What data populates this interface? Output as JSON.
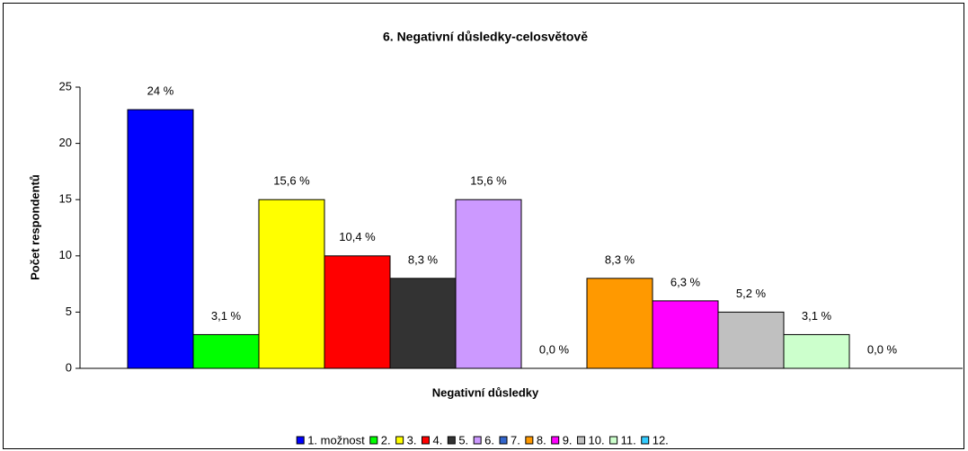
{
  "chart_data": {
    "type": "bar",
    "title": "6. Negativní důsledky-celosvětově",
    "x_label": "Negativní důsledky",
    "y_label": "Počet respondentů",
    "ylim": [
      0,
      25
    ],
    "yticks": [
      0,
      5,
      10,
      15,
      20,
      25
    ],
    "legend": "bottom",
    "series": [
      {
        "name": "1. možnost",
        "color": "#0000ff",
        "values": [
          23
        ],
        "value_labels": [
          "24 %"
        ]
      },
      {
        "name": "2.",
        "color": "#00ff00",
        "values": [
          3
        ],
        "value_labels": [
          "3,1 %"
        ]
      },
      {
        "name": "3.",
        "color": "#ffff00",
        "values": [
          15
        ],
        "value_labels": [
          "15,6 %"
        ]
      },
      {
        "name": "4.",
        "color": "#ff0000",
        "values": [
          10
        ],
        "value_labels": [
          "10,4 %"
        ]
      },
      {
        "name": "5.",
        "color": "#333333",
        "values": [
          8
        ],
        "value_labels": [
          "8,3 %"
        ]
      },
      {
        "name": "6.",
        "color": "#cc99ff",
        "values": [
          15
        ],
        "value_labels": [
          "15,6 %"
        ]
      },
      {
        "name": "7.",
        "color": "#3366cc",
        "values": [
          0
        ],
        "value_labels": [
          "0,0 %"
        ]
      },
      {
        "name": "8.",
        "color": "#ff9900",
        "values": [
          8
        ],
        "value_labels": [
          "8,3 %"
        ]
      },
      {
        "name": "9.",
        "color": "#ff00ff",
        "values": [
          6
        ],
        "value_labels": [
          "6,3 %"
        ]
      },
      {
        "name": "10.",
        "color": "#c0c0c0",
        "values": [
          5
        ],
        "value_labels": [
          "5,2 %"
        ]
      },
      {
        "name": "11.",
        "color": "#ccffcc",
        "values": [
          3
        ],
        "value_labels": [
          "3,1 %"
        ]
      },
      {
        "name": "12.",
        "color": "#33ccff",
        "values": [
          0
        ],
        "value_labels": [
          "0,0 %"
        ]
      }
    ]
  }
}
